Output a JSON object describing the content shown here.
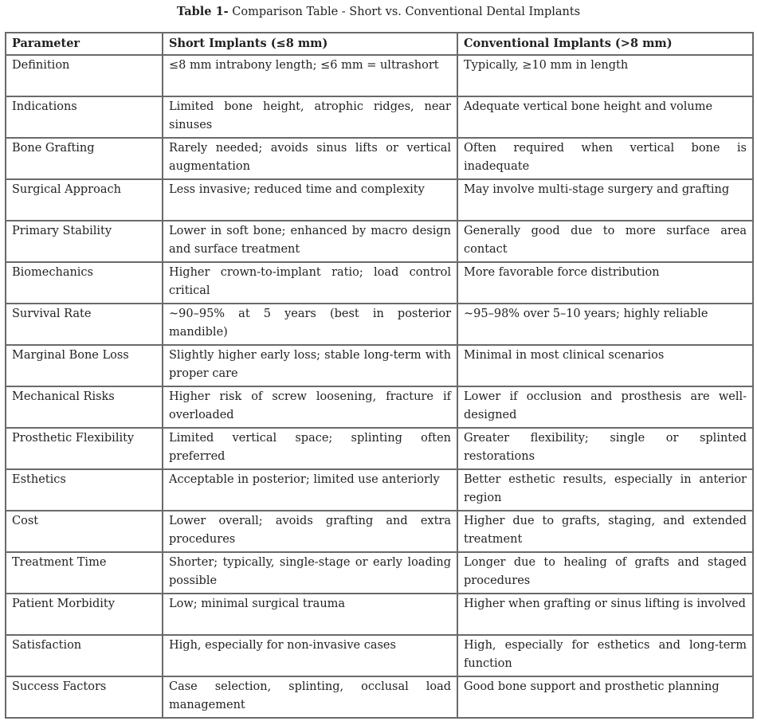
{
  "title": {
    "label": "Table 1-",
    "text": " Comparison Table - Short vs. Conventional Dental Implants"
  },
  "headers": [
    "Parameter",
    "Short Implants (≤8 mm)",
    "Conventional Implants (>8 mm)"
  ],
  "rows": [
    [
      "Definition",
      "≤8 mm intrabony length; ≤6 mm = ultrashort",
      "Typically, ≥10 mm in length"
    ],
    [
      "Indications",
      "Limited bone height, atrophic ridges, near sinuses",
      "Adequate vertical bone height and volume"
    ],
    [
      "Bone Grafting",
      "Rarely needed; avoids sinus lifts or vertical augmentation",
      "Often required when vertical bone is inadequate"
    ],
    [
      "Surgical Approach",
      "Less invasive; reduced time and complexity",
      "May involve multi-stage surgery and grafting"
    ],
    [
      "Primary Stability",
      "Lower in soft bone; enhanced by macro design and surface treatment",
      "Generally good due to more surface area contact"
    ],
    [
      "Biomechanics",
      "Higher crown-to-implant ratio; load control critical",
      "More favorable force distribution"
    ],
    [
      "Survival Rate",
      "~90–95% at 5 years (best in posterior mandible)",
      "~95–98% over 5–10 years; highly reliable"
    ],
    [
      "Marginal Bone Loss",
      "Slightly higher early loss; stable long-term with proper care",
      "Minimal in most clinical scenarios"
    ],
    [
      "Mechanical Risks",
      "Higher risk of screw loosening, fracture if overloaded",
      "Lower if occlusion and prosthesis are well-designed"
    ],
    [
      "Prosthetic Flexibility",
      "Limited vertical space; splinting often preferred",
      "Greater flexibility; single or splinted restorations"
    ],
    [
      "Esthetics",
      "Acceptable in posterior; limited use anteriorly",
      "Better esthetic results, especially in anterior region"
    ],
    [
      "Cost",
      "Lower overall; avoids grafting and extra procedures",
      "Higher due to grafts, staging, and extended treatment"
    ],
    [
      "Treatment Time",
      "Shorter; typically, single-stage or early loading possible",
      "Longer due to healing of grafts and staged procedures"
    ],
    [
      "Patient Morbidity",
      "Low; minimal surgical trauma",
      "Higher when grafting or sinus lifting is involved"
    ],
    [
      "Satisfaction",
      "High, especially for non-invasive cases",
      "High, especially for esthetics and long-term function"
    ],
    [
      "Success Factors",
      "Case selection, splinting, occlusal load management",
      "Good bone support and prosthetic planning"
    ]
  ]
}
